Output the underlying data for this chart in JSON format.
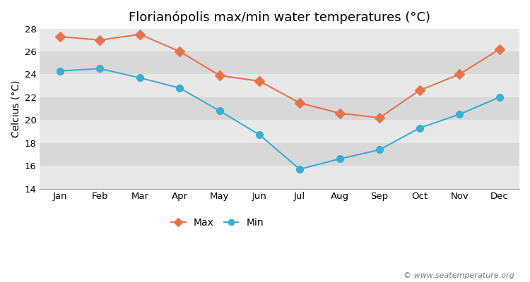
{
  "months": [
    "Jan",
    "Feb",
    "Mar",
    "Apr",
    "May",
    "Jun",
    "Jul",
    "Aug",
    "Sep",
    "Oct",
    "Nov",
    "Dec"
  ],
  "max_temps": [
    27.3,
    27.0,
    27.5,
    26.0,
    23.9,
    23.4,
    21.5,
    20.6,
    20.2,
    22.6,
    24.0,
    26.2
  ],
  "min_temps": [
    24.3,
    24.5,
    23.7,
    22.8,
    20.8,
    18.7,
    15.7,
    16.6,
    17.4,
    19.3,
    20.5,
    22.0
  ],
  "max_color": "#E8734A",
  "min_color": "#3BAED4",
  "fig_bg_color": "#ffffff",
  "band_colors": [
    "#e8e8e8",
    "#d8d8d8"
  ],
  "title": "Florianópolis max/min water temperatures (°C)",
  "ylabel": "Celcius (°C)",
  "ylim": [
    14,
    28
  ],
  "yticks": [
    14,
    16,
    18,
    20,
    22,
    24,
    26,
    28
  ],
  "watermark": "© www.seatemperature.org",
  "title_fontsize": 13,
  "label_fontsize": 10,
  "tick_fontsize": 9.5,
  "watermark_fontsize": 8
}
